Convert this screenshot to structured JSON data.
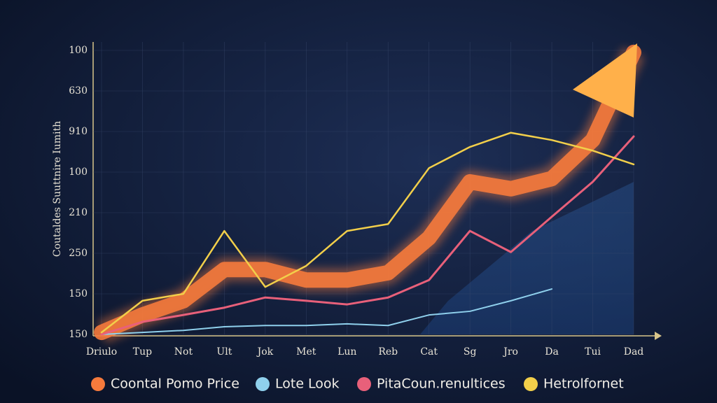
{
  "chart_data": {
    "type": "line",
    "y_label": "Coutaldes Suuttnire Iumith",
    "categories": [
      "Driulo",
      "Tup",
      "Not",
      "Ult",
      "Jok",
      "Met",
      "Lun",
      "Reb",
      "Cat",
      "Sg",
      "Jro",
      "Da",
      "Tui",
      "Dad"
    ],
    "ylim": [
      0,
      7
    ],
    "yticks": [
      {
        "value": 0,
        "label": "150"
      },
      {
        "value": 1,
        "label": "150"
      },
      {
        "value": 2,
        "label": "250"
      },
      {
        "value": 3,
        "label": "210"
      },
      {
        "value": 4,
        "label": "100"
      },
      {
        "value": 5,
        "label": "910"
      },
      {
        "value": 6,
        "label": "630"
      },
      {
        "value": 7,
        "label": "100"
      }
    ],
    "grid": true,
    "series": [
      {
        "name": "Coontal Pomo Price",
        "color": "#f57a3c",
        "values": [
          0.05,
          0.48,
          0.83,
          1.6,
          1.6,
          1.34,
          1.34,
          1.52,
          2.38,
          3.76,
          3.59,
          3.84,
          4.79,
          6.95
        ]
      },
      {
        "name": "Lote Look",
        "color": "#8fd0ec",
        "values": [
          0,
          0.05,
          0.1,
          0.19,
          0.22,
          0.22,
          0.26,
          0.22,
          0.48,
          0.57,
          0.83,
          1.12,
          null,
          null
        ]
      },
      {
        "name": "PitaCoun.renultices",
        "color": "#e8607a",
        "values": [
          0,
          0.31,
          0.48,
          0.66,
          0.91,
          0.83,
          0.74,
          0.91,
          1.34,
          2.55,
          2.03,
          2.9,
          3.76,
          4.88
        ]
      },
      {
        "name": "Hetrolfornet",
        "color": "#f2cf4a",
        "values": [
          0.05,
          0.83,
          1.0,
          2.55,
          1.17,
          1.69,
          2.55,
          2.72,
          4.1,
          4.62,
          4.97,
          4.79,
          4.53,
          4.19
        ]
      }
    ]
  }
}
